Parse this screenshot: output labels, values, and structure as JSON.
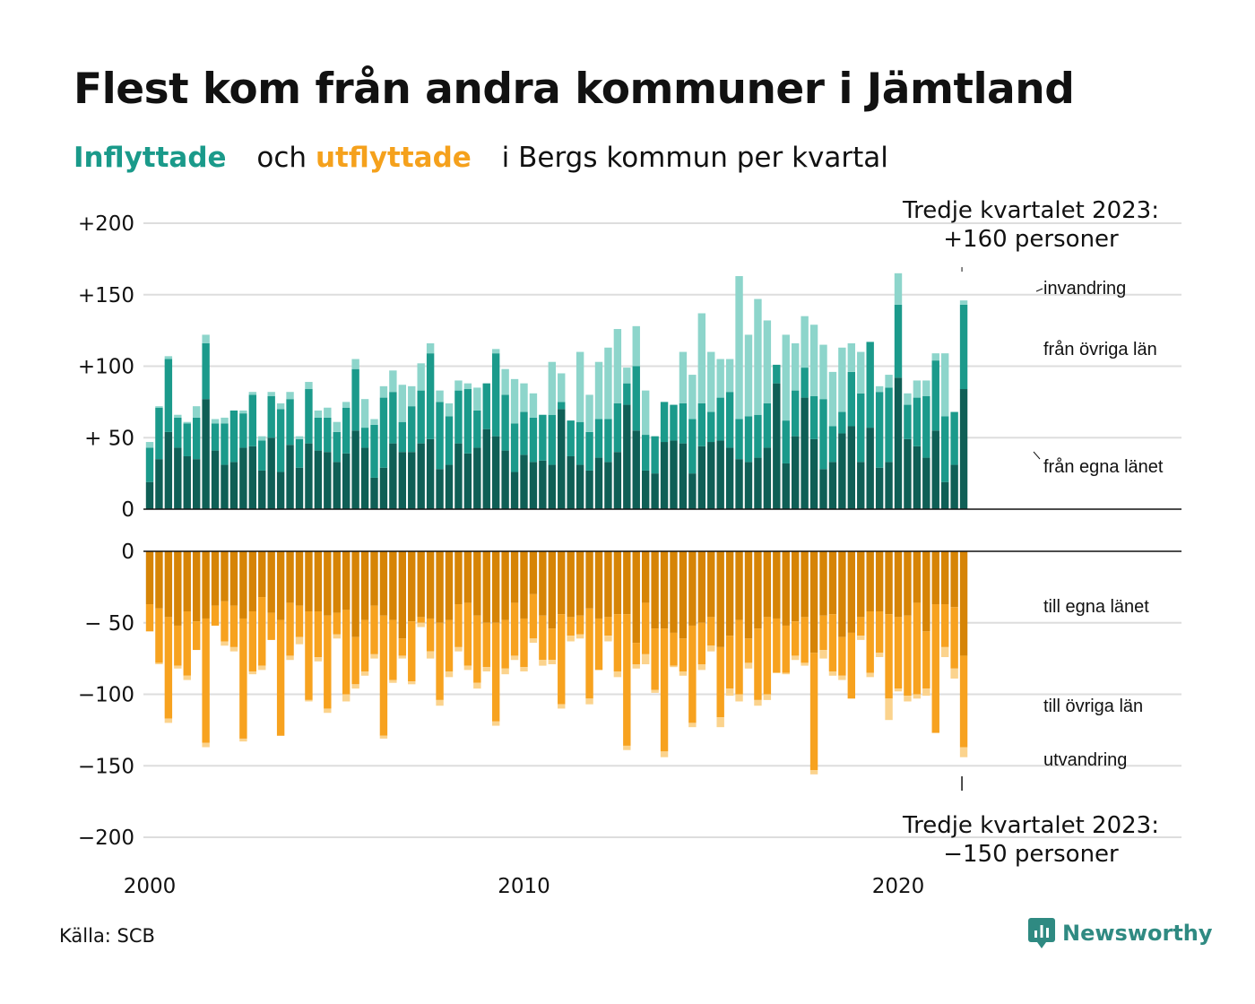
{
  "header": {
    "title": "Flest kom från andra kommuner i Jämtland",
    "subtitle_in": "Inflyttade",
    "subtitle_and": "och",
    "subtitle_out": "utflyttade",
    "subtitle_rest": "i Bergs kommun per kvartal"
  },
  "footer": {
    "source": "Källa: SCB",
    "brand": "Newsworthy"
  },
  "colors": {
    "in_own": "#0f5f56",
    "in_other": "#1b9a8b",
    "in_immigration": "#8dd5cb",
    "out_own": "#d68406",
    "out_other": "#f7a21f",
    "out_emigration": "#fbd38d",
    "grid": "#dddddd",
    "axis": "#111111"
  },
  "chart_data": {
    "type": "bar",
    "stacked": true,
    "x_start": 2000.0,
    "x_step": 0.25,
    "xticks": [
      "2000",
      "2010",
      "2020"
    ],
    "yticks_top": [
      "+200",
      "+150",
      "+100",
      "+ 50",
      "0"
    ],
    "yticks_bottom": [
      "0",
      "− 50",
      "−100",
      "−150",
      "−200"
    ],
    "ylim_top": [
      0,
      200
    ],
    "ylim_bottom": [
      -200,
      0
    ],
    "grid": true,
    "series_in": [
      {
        "name": "från egna länet",
        "values": [
          19,
          35,
          54,
          43,
          37,
          35,
          77,
          41,
          31,
          33,
          43,
          44,
          27,
          50,
          26,
          45,
          29,
          46,
          41,
          40,
          33,
          39,
          55,
          43,
          22,
          29,
          46,
          40,
          40,
          46,
          49,
          28,
          31,
          46,
          39,
          43,
          56,
          51,
          41,
          26,
          38,
          33,
          34,
          31,
          70,
          37,
          31,
          27,
          36,
          33,
          40,
          73,
          55,
          27,
          25,
          47,
          48,
          46,
          25,
          44,
          47,
          48,
          43,
          35,
          33,
          36,
          43,
          88,
          32,
          51,
          78,
          49,
          28,
          33,
          53,
          58,
          33,
          57,
          29,
          33,
          92,
          49,
          44,
          36,
          55,
          19,
          31,
          84
        ]
      },
      {
        "name": "från övriga län",
        "values": [
          24,
          36,
          51,
          21,
          23,
          29,
          39,
          19,
          29,
          36,
          24,
          36,
          21,
          29,
          44,
          32,
          20,
          38,
          23,
          24,
          21,
          32,
          43,
          14,
          37,
          49,
          36,
          21,
          32,
          37,
          60,
          47,
          34,
          37,
          45,
          26,
          32,
          58,
          39,
          34,
          30,
          31,
          32,
          35,
          5,
          25,
          30,
          27,
          27,
          30,
          34,
          15,
          45,
          25,
          26,
          28,
          25,
          28,
          38,
          30,
          21,
          30,
          39,
          28,
          32,
          30,
          31,
          13,
          30,
          32,
          21,
          30,
          49,
          25,
          15,
          38,
          48,
          60,
          53,
          52,
          51,
          24,
          34,
          43,
          49,
          46,
          37,
          59
        ]
      },
      {
        "name": "invandring",
        "values": [
          4,
          1,
          2,
          2,
          1,
          8,
          6,
          3,
          4,
          0,
          2,
          2,
          3,
          3,
          4,
          5,
          2,
          5,
          5,
          7,
          7,
          4,
          7,
          20,
          4,
          8,
          15,
          26,
          14,
          19,
          7,
          8,
          9,
          7,
          4,
          16,
          0,
          3,
          18,
          31,
          20,
          17,
          0,
          37,
          20,
          0,
          49,
          26,
          40,
          50,
          52,
          11,
          28,
          31,
          0,
          0,
          0,
          36,
          31,
          63,
          42,
          27,
          23,
          100,
          57,
          81,
          58,
          0,
          60,
          33,
          36,
          50,
          38,
          38,
          45,
          20,
          29,
          0,
          4,
          9,
          22,
          8,
          12,
          11,
          5,
          44,
          0,
          3
        ]
      },
      {
        "name": "",
        "values": [
          0,
          0,
          0,
          0,
          0,
          0,
          0,
          0,
          0,
          0,
          0,
          0,
          0,
          0,
          0,
          0,
          0,
          0,
          0,
          0,
          0,
          0,
          0,
          0,
          0,
          0,
          0,
          0,
          0,
          0,
          0,
          0,
          0,
          0,
          0,
          0,
          0,
          0,
          0,
          0,
          0,
          0,
          0,
          0,
          0,
          0,
          0,
          0,
          0,
          0,
          0,
          0,
          0,
          0,
          0,
          0,
          0,
          0,
          0,
          0,
          0,
          0,
          0,
          0,
          0,
          0,
          0,
          0,
          0,
          0,
          0,
          0,
          0,
          0,
          0,
          0,
          0,
          0,
          0,
          0,
          0,
          0,
          0,
          0,
          0,
          0,
          0,
          0
        ]
      }
    ],
    "series_out": [
      {
        "name": "till egna länet",
        "values": [
          37,
          40,
          46,
          52,
          42,
          49,
          47,
          38,
          35,
          38,
          47,
          42,
          32,
          43,
          48,
          36,
          38,
          42,
          42,
          45,
          43,
          41,
          60,
          48,
          38,
          45,
          48,
          61,
          49,
          46,
          47,
          50,
          48,
          37,
          36,
          45,
          50,
          50,
          48,
          36,
          47,
          30,
          45,
          54,
          44,
          46,
          45,
          40,
          47,
          46,
          44,
          44,
          64,
          36,
          54,
          54,
          57,
          61,
          52,
          50,
          46,
          67,
          59,
          48,
          61,
          54,
          46,
          47,
          52,
          49,
          46,
          71,
          45,
          44,
          60,
          57,
          46,
          42,
          42,
          44,
          46,
          45,
          36,
          56,
          37,
          37,
          39,
          73
        ]
      },
      {
        "name": "till övriga län",
        "values": [
          19,
          38,
          71,
          28,
          45,
          20,
          87,
          14,
          28,
          29,
          84,
          42,
          48,
          19,
          81,
          37,
          22,
          62,
          32,
          65,
          15,
          59,
          33,
          36,
          34,
          84,
          42,
          12,
          42,
          4,
          23,
          54,
          36,
          30,
          44,
          47,
          31,
          69,
          34,
          37,
          34,
          31,
          31,
          22,
          63,
          13,
          13,
          63,
          36,
          13,
          40,
          92,
          15,
          36,
          43,
          86,
          23,
          23,
          68,
          29,
          20,
          49,
          37,
          52,
          17,
          50,
          54,
          38,
          33,
          24,
          32,
          82,
          24,
          40,
          27,
          46,
          13,
          43,
          29,
          59,
          50,
          56,
          64,
          40,
          90,
          30,
          43,
          64
        ]
      },
      {
        "name": "utvandring",
        "values": [
          0,
          1,
          3,
          2,
          3,
          0,
          3,
          0,
          3,
          3,
          2,
          2,
          3,
          0,
          0,
          3,
          5,
          1,
          3,
          3,
          3,
          5,
          3,
          3,
          3,
          2,
          2,
          2,
          2,
          3,
          5,
          4,
          4,
          3,
          3,
          4,
          3,
          3,
          4,
          3,
          3,
          3,
          4,
          3,
          3,
          4,
          3,
          4,
          0,
          4,
          4,
          3,
          3,
          7,
          2,
          4,
          1,
          3,
          3,
          4,
          4,
          7,
          5,
          5,
          4,
          4,
          4,
          0,
          1,
          3,
          2,
          3,
          6,
          3,
          3,
          0,
          3,
          3,
          3,
          15,
          2,
          4,
          3,
          5,
          0,
          7,
          7,
          7
        ]
      }
    ],
    "annotation_top": [
      "Tredje kvartalet 2023:",
      "+160 personer"
    ],
    "annotation_bottom": [
      "Tredje kvartalet 2023:",
      "−150 personer"
    ]
  }
}
